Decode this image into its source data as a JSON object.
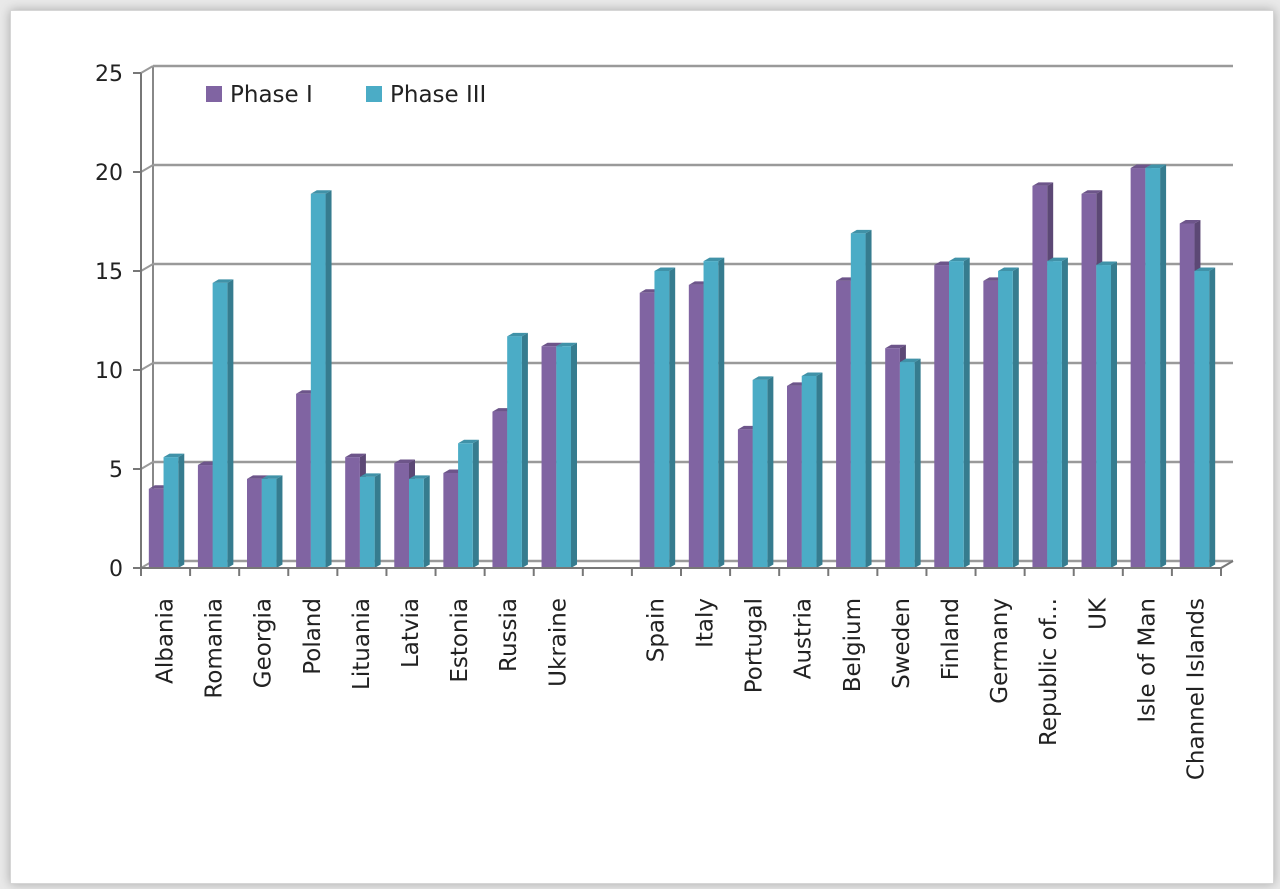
{
  "chart_data": {
    "type": "bar",
    "title": "",
    "xlabel": "",
    "ylabel": "",
    "ylim": [
      0,
      25
    ],
    "yticks": [
      0,
      5,
      10,
      15,
      20,
      25
    ],
    "grid": true,
    "legend": "top-left",
    "categories": [
      "Albania",
      "Romania",
      "Georgia",
      "Poland",
      "Lituania",
      "Latvia",
      "Estonia",
      "Russia",
      "Ukraine",
      "",
      "Spain",
      "Italy",
      "Portugal",
      "Austria",
      "Belgium",
      "Sweden",
      "Finland",
      "Germany",
      "Republic of...",
      "UK",
      "Isle of Man",
      "Channel Islands"
    ],
    "series": [
      {
        "name": "Phase I",
        "color": "#8064a2",
        "values": [
          4.0,
          5.2,
          4.5,
          8.8,
          5.6,
          5.3,
          4.8,
          7.9,
          11.2,
          null,
          13.9,
          14.3,
          7.0,
          9.2,
          14.5,
          11.1,
          15.3,
          14.5,
          19.3,
          18.9,
          20.2,
          17.4
        ]
      },
      {
        "name": "Phase III",
        "color": "#4bacc6",
        "values": [
          5.6,
          14.4,
          4.5,
          18.9,
          4.6,
          4.5,
          6.3,
          11.7,
          11.2,
          null,
          15.0,
          15.5,
          9.5,
          9.7,
          16.9,
          10.4,
          15.5,
          15.0,
          15.5,
          15.3,
          20.2,
          15.0
        ]
      }
    ]
  }
}
